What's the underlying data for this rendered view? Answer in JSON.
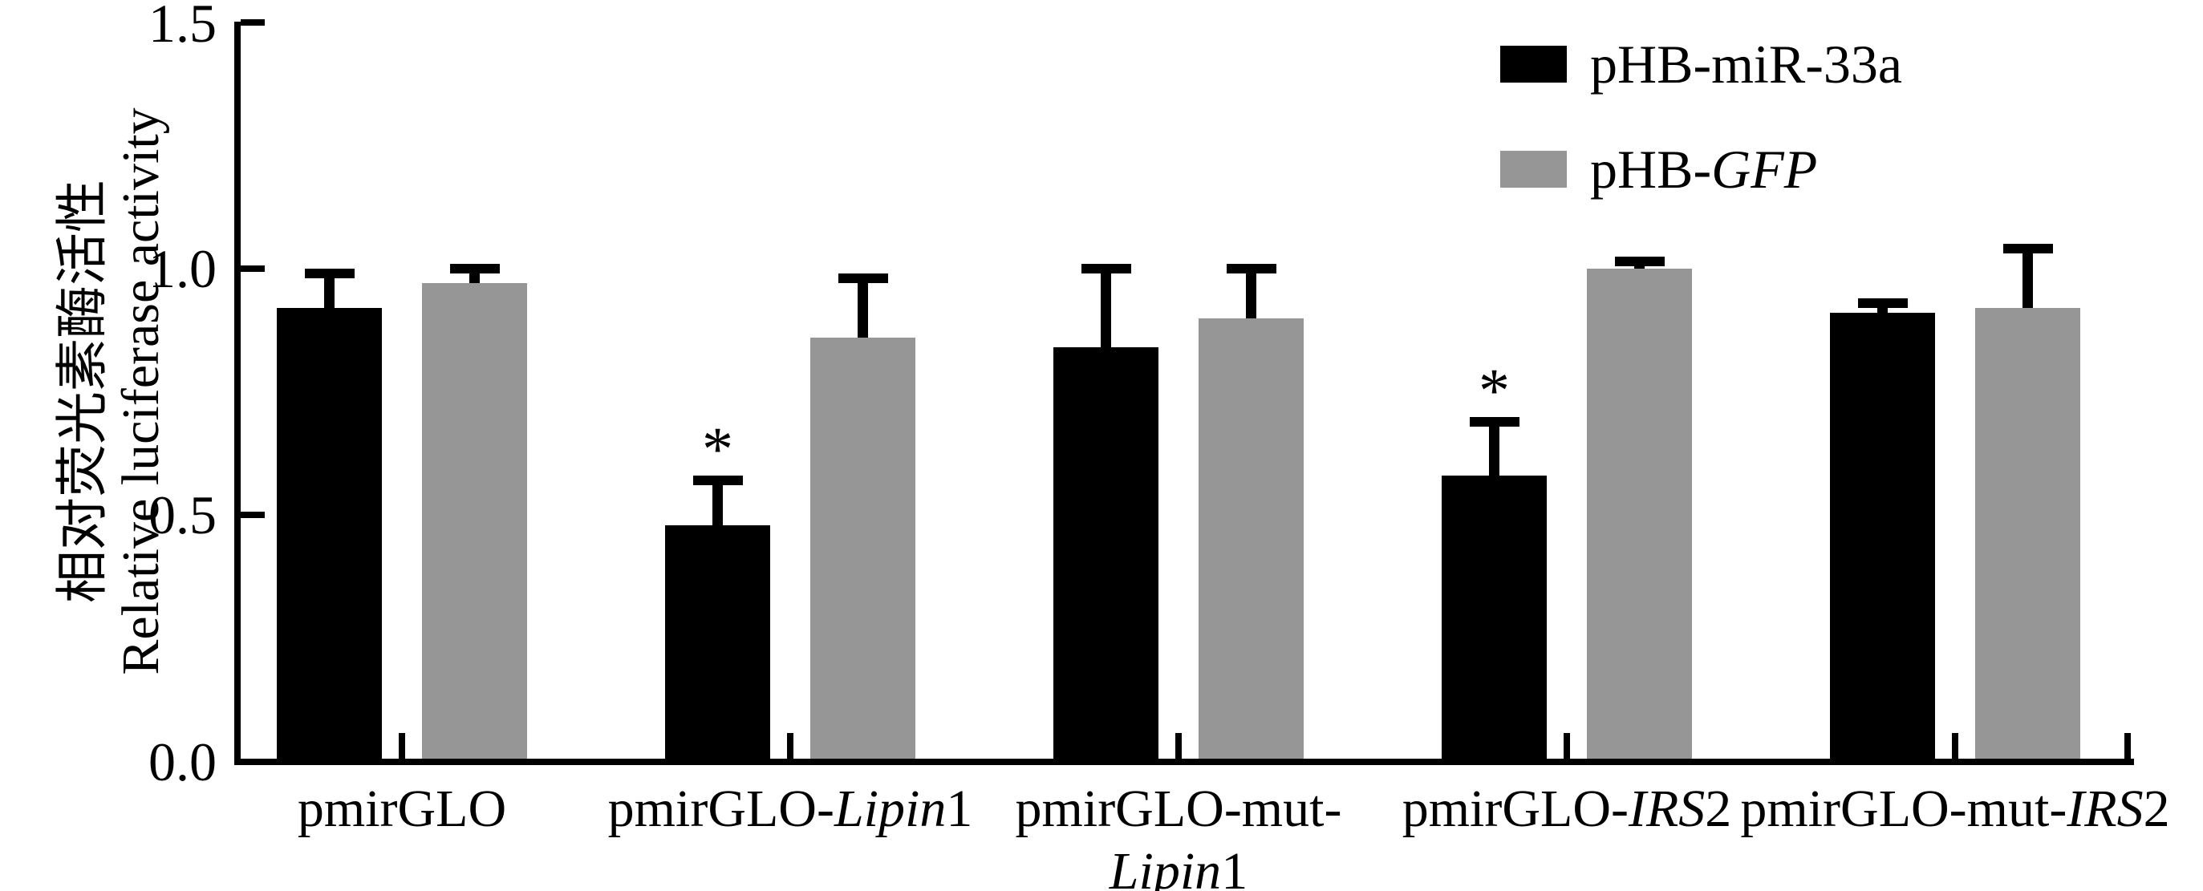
{
  "figure": {
    "y_axis": {
      "label_zh": "相对荧光素酶活性",
      "label_en": "Relative luciferase activity",
      "tick_labels": [
        "0.0",
        "0.5",
        "1.0",
        "1.5"
      ]
    }
  },
  "chart_data": {
    "type": "bar",
    "title": "",
    "ylabel": "相对荧光素酶活性 Relative luciferase activity",
    "xlabel": "",
    "ylim": [
      0,
      1.5
    ],
    "yticks": [
      0,
      0.5,
      1,
      1.5
    ],
    "grid": false,
    "legend_position": "top-right-inside",
    "categories": [
      "pmirGLO",
      "pmirGLO-Lipin1",
      "pmirGLO-mut-Lipin1",
      "pmirGLO-IRS2",
      "pmirGLO-mut-IRS2"
    ],
    "category_display": [
      {
        "lines": [
          [
            {
              "t": "pmirGLO",
              "i": false
            }
          ]
        ]
      },
      {
        "lines": [
          [
            {
              "t": "pmirGLO-",
              "i": false
            },
            {
              "t": "Lipin",
              "i": true
            },
            {
              "t": "1",
              "i": false
            }
          ]
        ]
      },
      {
        "lines": [
          [
            {
              "t": "pmirGLO-mut-",
              "i": false
            }
          ],
          [
            {
              "t": "Lipin",
              "i": true
            },
            {
              "t": "1",
              "i": false
            }
          ]
        ]
      },
      {
        "lines": [
          [
            {
              "t": "pmirGLO-",
              "i": false
            },
            {
              "t": "IRS",
              "i": true
            },
            {
              "t": "2",
              "i": false
            }
          ]
        ]
      },
      {
        "lines": [
          [
            {
              "t": "pmirGLO-mut-",
              "i": false
            },
            {
              "t": "IRS",
              "i": true
            },
            {
              "t": "2",
              "i": false
            }
          ]
        ]
      }
    ],
    "series": [
      {
        "name": "pHB-miR-33a",
        "color": "#000000",
        "values": [
          0.92,
          0.48,
          0.84,
          0.58,
          0.91
        ],
        "errors_plus": [
          0.07,
          0.09,
          0.16,
          0.11,
          0.02
        ],
        "significance": [
          "",
          "*",
          "",
          "*",
          ""
        ]
      },
      {
        "name": "pHB-GFP",
        "color": "#969696",
        "values": [
          0.97,
          0.86,
          0.9,
          1.0,
          0.92
        ],
        "errors_plus": [
          0.03,
          0.12,
          0.1,
          0.015,
          0.12
        ],
        "significance": [
          "",
          "",
          "",
          "",
          ""
        ]
      }
    ],
    "legend": [
      {
        "color": "#000000",
        "segments": [
          {
            "t": "pHB-miR-33a",
            "i": false
          }
        ]
      },
      {
        "color": "#969696",
        "segments": [
          {
            "t": "pHB-",
            "i": false
          },
          {
            "t": "GFP",
            "i": true
          }
        ]
      }
    ]
  }
}
